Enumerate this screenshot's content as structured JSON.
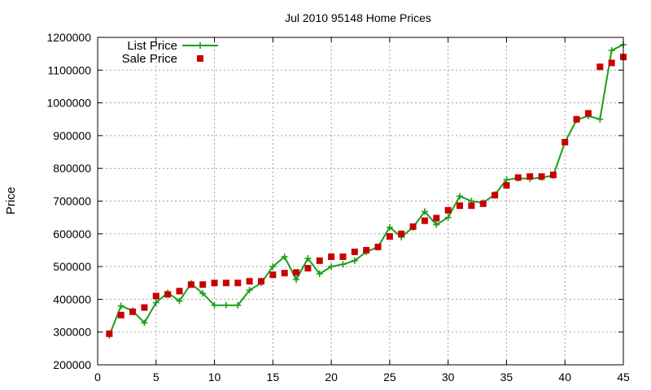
{
  "chart_data": {
    "type": "line",
    "title": "Jul 2010 95148 Home Prices",
    "ylabel": "Price",
    "xlabel": "",
    "xlim": [
      0,
      45
    ],
    "ylim": [
      200000,
      1200000
    ],
    "x_ticks": [
      "0",
      "5",
      "10",
      "15",
      "20",
      "25",
      "30",
      "35",
      "40",
      "45"
    ],
    "y_ticks": [
      "200000",
      "300000",
      "400000",
      "500000",
      "600000",
      "700000",
      "800000",
      "900000",
      "1000000",
      "1100000",
      "1200000"
    ],
    "grid": true,
    "legend_position": "top-left",
    "series": [
      {
        "name": "List Price",
        "style": "line+cross",
        "color": "#1a9e1a",
        "x": [
          1,
          2,
          3,
          4,
          5,
          6,
          7,
          8,
          9,
          10,
          11,
          12,
          13,
          14,
          15,
          16,
          17,
          18,
          19,
          20,
          21,
          22,
          23,
          24,
          25,
          26,
          27,
          28,
          29,
          30,
          31,
          32,
          33,
          34,
          35,
          36,
          37,
          38,
          39,
          40,
          41,
          42,
          43,
          44,
          45
        ],
        "values": [
          290000,
          380000,
          365000,
          328000,
          390000,
          420000,
          395000,
          448000,
          418000,
          382000,
          382000,
          382000,
          428000,
          450000,
          500000,
          530000,
          460000,
          525000,
          478000,
          500000,
          507000,
          518000,
          545000,
          560000,
          620000,
          590000,
          620000,
          668000,
          628000,
          650000,
          715000,
          700000,
          695000,
          720000,
          765000,
          770000,
          768000,
          772000,
          778000,
          880000,
          948000,
          960000,
          950000,
          1160000,
          1178000
        ]
      },
      {
        "name": "Sale Price",
        "style": "square",
        "color": "#c80000",
        "x": [
          1,
          2,
          3,
          4,
          5,
          6,
          7,
          8,
          9,
          10,
          11,
          12,
          13,
          14,
          15,
          16,
          17,
          18,
          19,
          20,
          21,
          22,
          23,
          24,
          25,
          26,
          27,
          28,
          29,
          30,
          31,
          32,
          33,
          34,
          35,
          36,
          37,
          38,
          39,
          40,
          41,
          42,
          43,
          44,
          45
        ],
        "values": [
          295000,
          352000,
          362000,
          375000,
          410000,
          415000,
          425000,
          445000,
          445000,
          450000,
          450000,
          450000,
          455000,
          455000,
          475000,
          480000,
          482000,
          495000,
          518000,
          530000,
          530000,
          545000,
          550000,
          560000,
          592000,
          600000,
          622000,
          640000,
          648000,
          672000,
          686000,
          686000,
          692000,
          718000,
          748000,
          772000,
          775000,
          775000,
          780000,
          880000,
          950000,
          968000,
          1110000,
          1122000,
          1140000
        ]
      }
    ]
  }
}
